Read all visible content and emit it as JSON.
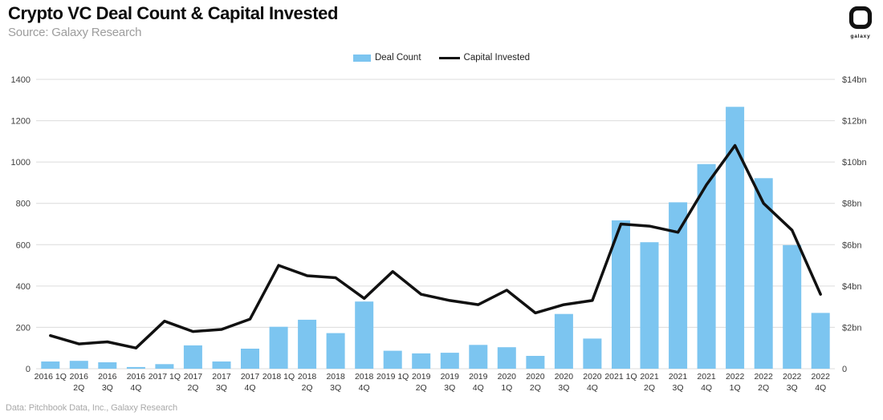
{
  "header": {
    "title": "Crypto VC Deal Count & Capital Invested",
    "subtitle": "Source: Galaxy Research",
    "logo_text": "galaxy"
  },
  "legend": [
    {
      "label": "Deal Count",
      "type": "bar",
      "color": "#7cc5f0"
    },
    {
      "label": "Capital Invested",
      "type": "line",
      "color": "#111111"
    }
  ],
  "footer": {
    "text": "Data: Pitchbook Data, Inc., Galaxy Research"
  },
  "chart_data": {
    "type": "bar+line",
    "title": "Crypto VC Deal Count & Capital Invested",
    "grid": true,
    "legend_position": "top-center",
    "background": "#ffffff",
    "gridline_color": "#dcdcdc",
    "categories": [
      {
        "label": "2016 1Q",
        "lines": [
          "2016 1Q"
        ]
      },
      {
        "label": "2016 2Q",
        "lines": [
          "2016",
          "2Q"
        ]
      },
      {
        "label": "2016 3Q",
        "lines": [
          "2016",
          "3Q"
        ]
      },
      {
        "label": "2016 4Q",
        "lines": [
          "2016",
          "4Q"
        ]
      },
      {
        "label": "2017 1Q",
        "lines": [
          "2017 1Q"
        ]
      },
      {
        "label": "2017 2Q",
        "lines": [
          "2017",
          "2Q"
        ]
      },
      {
        "label": "2017 3Q",
        "lines": [
          "2017",
          "3Q"
        ]
      },
      {
        "label": "2017 4Q",
        "lines": [
          "2017",
          "4Q"
        ]
      },
      {
        "label": "2018 1Q",
        "lines": [
          "2018 1Q"
        ]
      },
      {
        "label": "2018 2Q",
        "lines": [
          "2018",
          "2Q"
        ]
      },
      {
        "label": "2018 3Q",
        "lines": [
          "2018",
          "3Q"
        ]
      },
      {
        "label": "2018 4Q",
        "lines": [
          "2018",
          "4Q"
        ]
      },
      {
        "label": "2019 1Q",
        "lines": [
          "2019 1Q"
        ]
      },
      {
        "label": "2019 2Q",
        "lines": [
          "2019",
          "2Q"
        ]
      },
      {
        "label": "2019 3Q",
        "lines": [
          "2019",
          "3Q"
        ]
      },
      {
        "label": "2019 4Q",
        "lines": [
          "2019",
          "4Q"
        ]
      },
      {
        "label": "2020 1Q",
        "lines": [
          "2020",
          "1Q"
        ]
      },
      {
        "label": "2020 2Q",
        "lines": [
          "2020",
          "2Q"
        ]
      },
      {
        "label": "2020 3Q",
        "lines": [
          "2020",
          "3Q"
        ]
      },
      {
        "label": "2020 4Q",
        "lines": [
          "2020",
          "4Q"
        ]
      },
      {
        "label": "2021 1Q",
        "lines": [
          "2021 1Q"
        ]
      },
      {
        "label": "2021 2Q",
        "lines": [
          "2021",
          "2Q"
        ]
      },
      {
        "label": "2021 3Q",
        "lines": [
          "2021",
          "3Q"
        ]
      },
      {
        "label": "2021 4Q",
        "lines": [
          "2021",
          "4Q"
        ]
      },
      {
        "label": "2022 1Q",
        "lines": [
          "2022",
          "1Q"
        ]
      },
      {
        "label": "2022 2Q",
        "lines": [
          "2022",
          "2Q"
        ]
      },
      {
        "label": "2022 3Q",
        "lines": [
          "2022",
          "3Q"
        ]
      },
      {
        "label": "2022 4Q",
        "lines": [
          "2022",
          "4Q"
        ]
      }
    ],
    "series": [
      {
        "name": "Deal Count",
        "type": "bar",
        "axis": "left",
        "color": "#7cc5f0",
        "values": [
          35,
          38,
          31,
          8,
          22,
          113,
          35,
          97,
          203,
          237,
          172,
          325,
          87,
          74,
          77,
          115,
          104,
          62,
          265,
          146,
          718,
          612,
          805,
          990,
          1267,
          922,
          598,
          270
        ]
      },
      {
        "name": "Capital Invested",
        "type": "line",
        "axis": "right",
        "color": "#111111",
        "values": [
          1.6,
          1.2,
          1.3,
          1.0,
          2.3,
          1.8,
          1.9,
          2.4,
          5.0,
          4.5,
          4.4,
          3.4,
          4.7,
          3.6,
          3.3,
          3.1,
          3.8,
          2.7,
          3.1,
          3.3,
          7.0,
          6.9,
          6.6,
          8.9,
          10.8,
          8.0,
          6.7,
          3.6
        ]
      }
    ],
    "left_axis": {
      "label": "Deal Count",
      "range": [
        0,
        1400
      ],
      "tick_values": [
        0,
        200,
        400,
        600,
        800,
        1000,
        1200,
        1400
      ],
      "tick_labels": [
        "0",
        "200",
        "400",
        "600",
        "800",
        "1000",
        "1200",
        "1400"
      ]
    },
    "right_axis": {
      "label": "Capital Invested",
      "unit": "$bn",
      "range": [
        0,
        14
      ],
      "tick_values": [
        0,
        2,
        4,
        6,
        8,
        10,
        12,
        14
      ],
      "tick_labels": [
        "0",
        "$2bn",
        "$4bn",
        "$6bn",
        "$8bn",
        "$10bn",
        "$12bn",
        "$14bn"
      ]
    }
  }
}
